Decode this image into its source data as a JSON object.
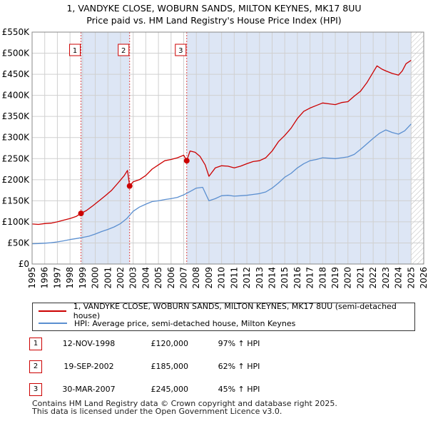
{
  "header": {
    "title_line1": "1, VANDYKE CLOSE, WOBURN SANDS, MILTON KEYNES, MK17 8UU",
    "title_line2": "Price paid vs. HM Land Registry's House Price Index (HPI)"
  },
  "colors": {
    "property_line": "#cc0000",
    "hpi_line": "#5b8fd0",
    "shade": "#dde6f5",
    "grid": "#d0d0d0",
    "marker_line": "#dd4444"
  },
  "legend": {
    "property_label": "1, VANDYKE CLOSE, WOBURN SANDS, MILTON KEYNES, MK17 8UU (semi-detached house)",
    "hpi_label": "HPI: Average price, semi-detached house, Milton Keynes"
  },
  "sales": [
    {
      "num": "1",
      "date": "12-NOV-1998",
      "price": "£120,000",
      "hpi": "97% ↑ HPI"
    },
    {
      "num": "2",
      "date": "19-SEP-2002",
      "price": "£185,000",
      "hpi": "62% ↑ HPI"
    },
    {
      "num": "3",
      "date": "30-MAR-2007",
      "price": "£245,000",
      "hpi": "45% ↑ HPI"
    }
  ],
  "footer": {
    "line1": "Contains HM Land Registry data © Crown copyright and database right 2025.",
    "line2": "This data is licensed under the Open Government Licence v3.0."
  },
  "chart_data": {
    "type": "line",
    "xlim": [
      1995,
      2026
    ],
    "ylim": [
      0,
      550000
    ],
    "x_ticks": [
      "1995",
      "1996",
      "1997",
      "1998",
      "1999",
      "2000",
      "2001",
      "2002",
      "2003",
      "2004",
      "2005",
      "2006",
      "2007",
      "2008",
      "2009",
      "2010",
      "2011",
      "2012",
      "2013",
      "2014",
      "2015",
      "2016",
      "2017",
      "2018",
      "2019",
      "2020",
      "2021",
      "2022",
      "2023",
      "2024",
      "2025",
      "2026"
    ],
    "y_ticks": [
      {
        "value": 0,
        "label": "£0"
      },
      {
        "value": 50000,
        "label": "£50K"
      },
      {
        "value": 100000,
        "label": "£100K"
      },
      {
        "value": 150000,
        "label": "£150K"
      },
      {
        "value": 200000,
        "label": "£200K"
      },
      {
        "value": 250000,
        "label": "£250K"
      },
      {
        "value": 300000,
        "label": "£300K"
      },
      {
        "value": 350000,
        "label": "£350K"
      },
      {
        "value": 400000,
        "label": "£400K"
      },
      {
        "value": 450000,
        "label": "£450K"
      },
      {
        "value": 500000,
        "label": "£500K"
      },
      {
        "value": 550000,
        "label": "£550K"
      }
    ],
    "grid": true,
    "shaded_periods": [
      [
        1998.87,
        2002.72
      ],
      [
        2007.24,
        2025.0
      ]
    ],
    "future_hatch_from": 2025.0,
    "transactions": [
      {
        "label": "1",
        "x": 1998.87,
        "y": 120000
      },
      {
        "label": "2",
        "x": 2002.72,
        "y": 185000
      },
      {
        "label": "3",
        "x": 2007.24,
        "y": 245000
      }
    ],
    "series": [
      {
        "name": "1, VANDYKE CLOSE, WOBURN SANDS, MILTON KEYNES, MK17 8UU (semi-detached house)",
        "color": "#cc0000",
        "x": [
          1995.0,
          1995.5,
          1996.0,
          1996.5,
          1997.0,
          1997.5,
          1998.0,
          1998.5,
          1998.87,
          1999.3,
          1999.8,
          2000.3,
          2000.8,
          2001.3,
          2001.8,
          2002.3,
          2002.55,
          2002.72,
          2003.0,
          2003.5,
          2004.0,
          2004.5,
          2005.0,
          2005.5,
          2006.0,
          2006.5,
          2007.0,
          2007.24,
          2007.5,
          2007.9,
          2008.3,
          2008.7,
          2009.0,
          2009.5,
          2010.0,
          2010.5,
          2011.0,
          2011.5,
          2012.0,
          2012.5,
          2013.0,
          2013.5,
          2014.0,
          2014.5,
          2015.0,
          2015.5,
          2016.0,
          2016.5,
          2017.0,
          2017.5,
          2018.0,
          2018.5,
          2019.0,
          2019.5,
          2020.0,
          2020.5,
          2021.0,
          2021.5,
          2022.0,
          2022.3,
          2022.7,
          2023.0,
          2023.5,
          2024.0,
          2024.3,
          2024.6,
          2025.0
        ],
        "y": [
          95000,
          94000,
          96000,
          97000,
          100000,
          104000,
          108000,
          113000,
          120000,
          127000,
          138000,
          150000,
          162000,
          175000,
          192000,
          210000,
          222000,
          185000,
          195000,
          200000,
          210000,
          225000,
          235000,
          245000,
          248000,
          252000,
          258000,
          245000,
          268000,
          265000,
          255000,
          235000,
          208000,
          228000,
          233000,
          232000,
          228000,
          232000,
          238000,
          243000,
          245000,
          252000,
          268000,
          290000,
          305000,
          322000,
          345000,
          362000,
          370000,
          376000,
          382000,
          380000,
          378000,
          383000,
          385000,
          398000,
          410000,
          430000,
          455000,
          470000,
          462000,
          458000,
          452000,
          448000,
          458000,
          475000,
          483000
        ]
      },
      {
        "name": "HPI: Average price, semi-detached house, Milton Keynes",
        "color": "#5b8fd0",
        "x": [
          1995.0,
          1995.5,
          1996.0,
          1996.5,
          1997.0,
          1997.5,
          1998.0,
          1998.5,
          1999.0,
          1999.5,
          2000.0,
          2000.5,
          2001.0,
          2001.5,
          2002.0,
          2002.5,
          2003.0,
          2003.5,
          2004.0,
          2004.5,
          2005.0,
          2005.5,
          2006.0,
          2006.5,
          2007.0,
          2007.5,
          2008.0,
          2008.5,
          2009.0,
          2009.5,
          2010.0,
          2010.5,
          2011.0,
          2011.5,
          2012.0,
          2012.5,
          2013.0,
          2013.5,
          2014.0,
          2014.5,
          2015.0,
          2015.5,
          2016.0,
          2016.5,
          2017.0,
          2017.5,
          2018.0,
          2018.5,
          2019.0,
          2019.5,
          2020.0,
          2020.5,
          2021.0,
          2021.5,
          2022.0,
          2022.5,
          2023.0,
          2023.5,
          2024.0,
          2024.5,
          2025.0
        ],
        "y": [
          48000,
          48500,
          49500,
          50500,
          52500,
          55000,
          58000,
          60500,
          63000,
          66000,
          71000,
          77000,
          82000,
          88000,
          96000,
          108000,
          125000,
          135000,
          142000,
          148000,
          150000,
          153000,
          155000,
          158000,
          164000,
          172000,
          180000,
          182000,
          150000,
          155000,
          162000,
          163000,
          161000,
          162000,
          163000,
          165000,
          167000,
          171000,
          180000,
          192000,
          206000,
          215000,
          228000,
          238000,
          245000,
          248000,
          252000,
          251000,
          250000,
          252000,
          254000,
          260000,
          272000,
          285000,
          298000,
          310000,
          318000,
          312000,
          308000,
          316000,
          332000
        ]
      }
    ]
  }
}
